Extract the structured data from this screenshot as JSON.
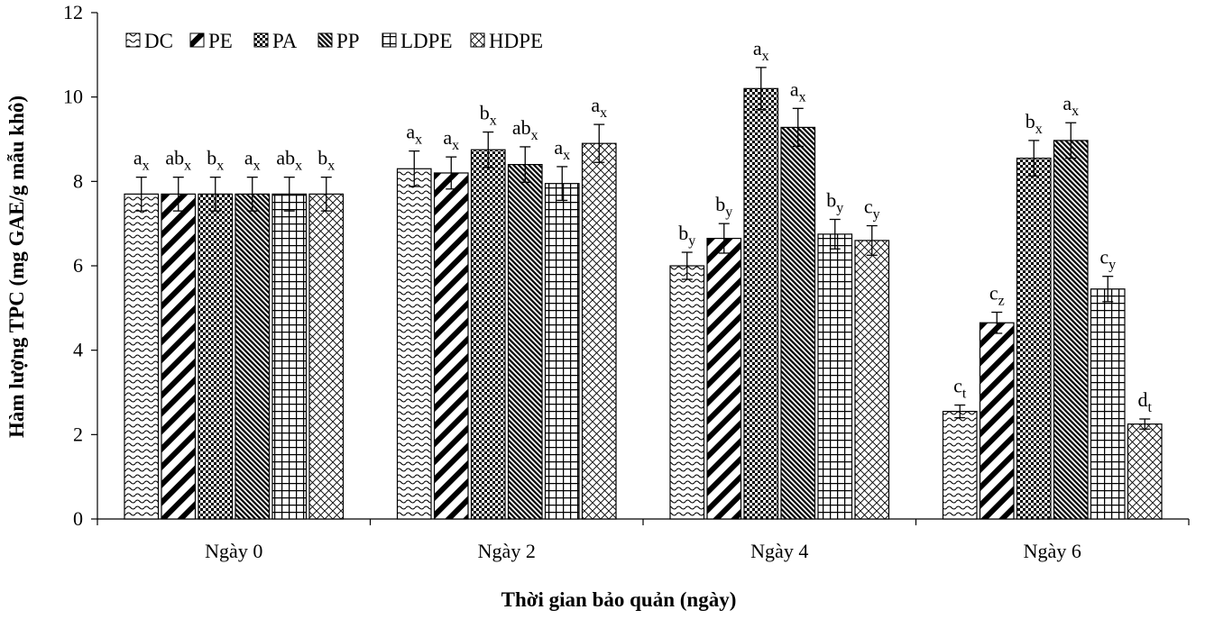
{
  "chart_data": {
    "type": "bar",
    "title": "",
    "xlabel": "Thời gian bảo quản (ngày)",
    "ylabel": "Hàm lượng TPC (mg GAE/g mẫu khô)",
    "ylim": [
      0,
      12
    ],
    "yticks": [
      "0",
      "2",
      "4",
      "6",
      "8",
      "10",
      "12"
    ],
    "grid": false,
    "legend_position": "top-left",
    "categories": [
      "Ngày 0",
      "Ngày 2",
      "Ngày 4",
      "Ngày 6"
    ],
    "series": [
      {
        "name": "DC",
        "pattern": "wave",
        "values": [
          7.7,
          8.3,
          6.0,
          2.55
        ],
        "errors": [
          0.4,
          0.42,
          0.32,
          0.15
        ],
        "labels": [
          [
            "a",
            "x"
          ],
          [
            "a",
            "x"
          ],
          [
            "b",
            "y"
          ],
          [
            "c",
            "t"
          ]
        ]
      },
      {
        "name": "PE",
        "pattern": "diag-stripes",
        "values": [
          7.7,
          8.2,
          6.65,
          4.65
        ],
        "errors": [
          0.4,
          0.38,
          0.35,
          0.25
        ],
        "labels": [
          [
            "ab",
            "x"
          ],
          [
            "a",
            "x"
          ],
          [
            "b",
            "y"
          ],
          [
            "c",
            "z"
          ]
        ]
      },
      {
        "name": "PA",
        "pattern": "checker",
        "values": [
          7.7,
          8.75,
          10.2,
          8.55
        ],
        "errors": [
          0.4,
          0.42,
          0.5,
          0.42
        ],
        "labels": [
          [
            "b",
            "x"
          ],
          [
            "b",
            "x"
          ],
          [
            "a",
            "x"
          ],
          [
            "b",
            "x"
          ]
        ]
      },
      {
        "name": "PP",
        "pattern": "dense-diag",
        "values": [
          7.7,
          8.4,
          9.28,
          8.97
        ],
        "errors": [
          0.4,
          0.42,
          0.45,
          0.42
        ],
        "labels": [
          [
            "a",
            "x"
          ],
          [
            "ab",
            "x"
          ],
          [
            "a",
            "x"
          ],
          [
            "a",
            "x"
          ]
        ]
      },
      {
        "name": "LDPE",
        "pattern": "grid",
        "values": [
          7.7,
          7.95,
          6.75,
          5.45
        ],
        "errors": [
          0.4,
          0.4,
          0.35,
          0.3
        ],
        "labels": [
          [
            "ab",
            "x"
          ],
          [
            "a",
            "x"
          ],
          [
            "b",
            "y"
          ],
          [
            "c",
            "y"
          ]
        ]
      },
      {
        "name": "HDPE",
        "pattern": "cross-hatch",
        "values": [
          7.7,
          8.9,
          6.6,
          2.25
        ],
        "errors": [
          0.4,
          0.45,
          0.35,
          0.12
        ],
        "labels": [
          [
            "b",
            "x"
          ],
          [
            "a",
            "x"
          ],
          [
            "c",
            "y"
          ],
          [
            "d",
            "t"
          ]
        ]
      }
    ]
  }
}
